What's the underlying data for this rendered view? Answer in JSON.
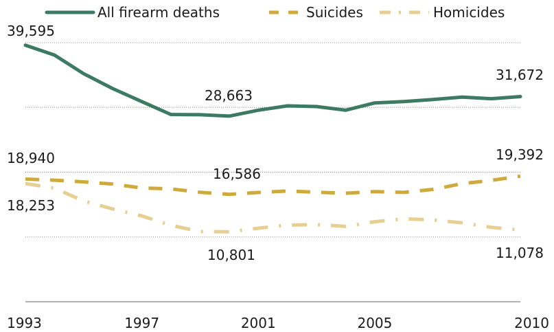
{
  "chart_data": {
    "type": "line",
    "x": [
      1993,
      1994,
      1995,
      1996,
      1997,
      1998,
      1999,
      2000,
      2001,
      2002,
      2003,
      2004,
      2005,
      2006,
      2007,
      2008,
      2009,
      2010
    ],
    "x_ticks": [
      "1993",
      "1997",
      "2001",
      "2005",
      "2010"
    ],
    "y_lim": [
      0,
      42000
    ],
    "grid": true,
    "legend_position": "top",
    "series": [
      {
        "name": "All firearm deaths",
        "style": "solid",
        "color": "#3d7a63",
        "values": [
          39595,
          38077,
          35200,
          32900,
          30900,
          28900,
          28874,
          28663,
          29573,
          30242,
          30136,
          29569,
          30694,
          30896,
          31224,
          31593,
          31347,
          31672
        ],
        "labels": [
          {
            "index": 0,
            "text": "39,595"
          },
          {
            "index": 7,
            "text": "28,663"
          },
          {
            "index": 17,
            "text": "31,672"
          }
        ]
      },
      {
        "name": "Suicides",
        "style": "dashed",
        "color": "#cfa93c",
        "values": [
          18940,
          18765,
          18503,
          18166,
          17566,
          17424,
          16889,
          16586,
          16869,
          17108,
          16907,
          16750,
          17002,
          16883,
          17352,
          18223,
          18735,
          19392
        ],
        "labels": [
          {
            "index": 0,
            "text": "18,940"
          },
          {
            "index": 7,
            "text": "16,586"
          },
          {
            "index": 17,
            "text": "19,392"
          }
        ]
      },
      {
        "name": "Homicides",
        "style": "dashdot",
        "color": "#e7cf93",
        "values": [
          18253,
          17527,
          15551,
          14327,
          13252,
          11798,
          10828,
          10801,
          11348,
          11829,
          11920,
          11624,
          12352,
          12791,
          12632,
          12179,
          11493,
          11078
        ],
        "labels": [
          {
            "index": 0,
            "text": "18,253"
          },
          {
            "index": 7,
            "text": "10,801"
          },
          {
            "index": 17,
            "text": "11,078"
          }
        ]
      }
    ]
  }
}
